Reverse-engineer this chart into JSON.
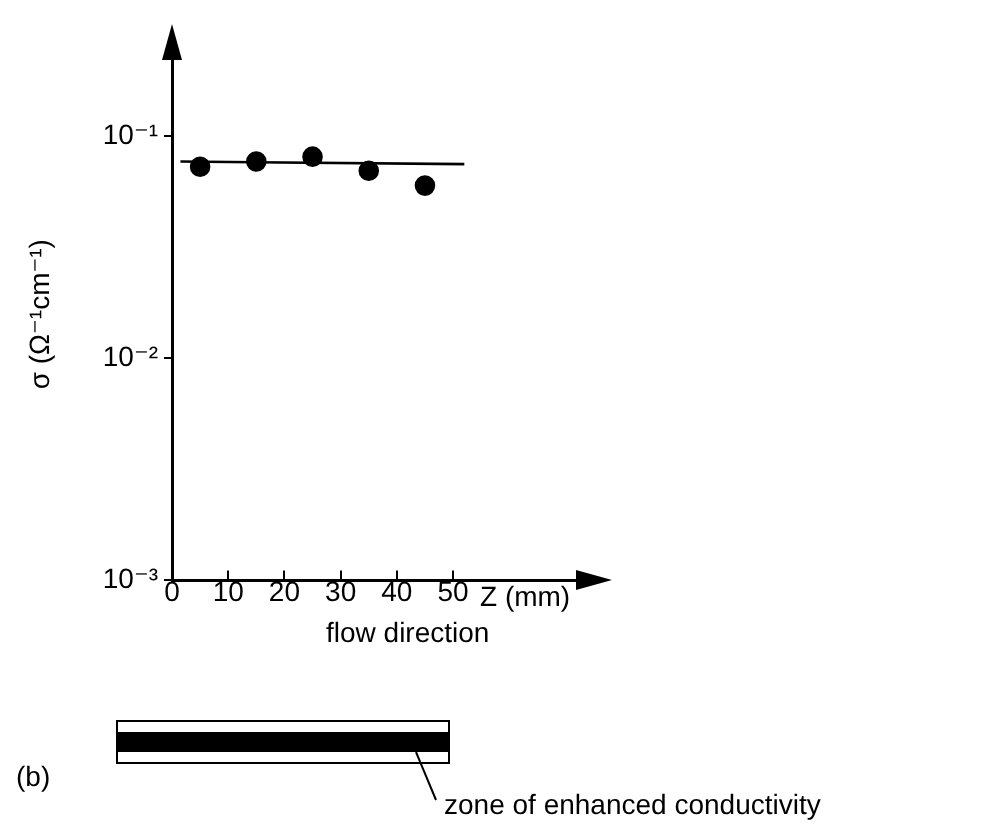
{
  "chart_data": {
    "type": "scatter",
    "xlabel": "Z (mm)",
    "ylabel": "σ (Ω⁻¹cm⁻¹)",
    "annotations": [
      "flow direction",
      "(b)",
      "zone of enhanced conductivity"
    ],
    "series": [
      {
        "type": "scatter",
        "color": "#000000",
        "marker": "circle",
        "x": [
          5,
          15,
          25,
          35,
          45
        ],
        "values": [
          0.073,
          0.077,
          0.081,
          0.07,
          0.06
        ]
      },
      {
        "type": "line",
        "color": "#000000",
        "marker": "none",
        "x": [
          1.5,
          52
        ],
        "values": [
          0.077,
          0.075
        ]
      }
    ],
    "xlim": [
      0,
      74
    ],
    "xticks": [
      0,
      10,
      20,
      30,
      40,
      50
    ],
    "ylim": [
      0.001,
      0.25
    ],
    "yticks": [
      {
        "value": 0.001,
        "label": "10⁻³"
      },
      {
        "value": 0.01,
        "label": "10⁻²"
      },
      {
        "value": 0.1,
        "label": "10⁻¹"
      }
    ],
    "log": "y",
    "grid": false,
    "legend": false
  }
}
